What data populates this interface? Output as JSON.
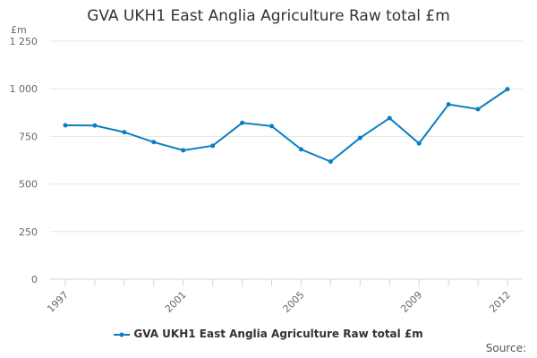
{
  "chart_data": {
    "type": "line",
    "title": "GVA UKH1 East Anglia Agriculture Raw total £m",
    "ylabel": "£m",
    "xlabel": "",
    "ylim": [
      0,
      1250
    ],
    "yticks": [
      0,
      250,
      500,
      750,
      1000,
      1250
    ],
    "ytick_labels": [
      "0",
      "250",
      "500",
      "750",
      "1 000",
      "1 250"
    ],
    "xticks": [
      "1997",
      "2001",
      "2005",
      "2009",
      "2012"
    ],
    "x": [
      1997,
      1998,
      1999,
      2000,
      2001,
      2002,
      2003,
      2004,
      2005,
      2006,
      2007,
      2008,
      2009,
      2010,
      2011,
      2012
    ],
    "series": [
      {
        "name": "GVA UKH1 East Anglia Agriculture Raw total £m",
        "color": "#0a7ec2",
        "values": [
          808,
          807,
          772,
          720,
          677,
          701,
          821,
          804,
          682,
          618,
          742,
          846,
          713,
          918,
          893,
          998
        ]
      }
    ],
    "legend": "bottom",
    "grid": true
  },
  "source": "Source:"
}
